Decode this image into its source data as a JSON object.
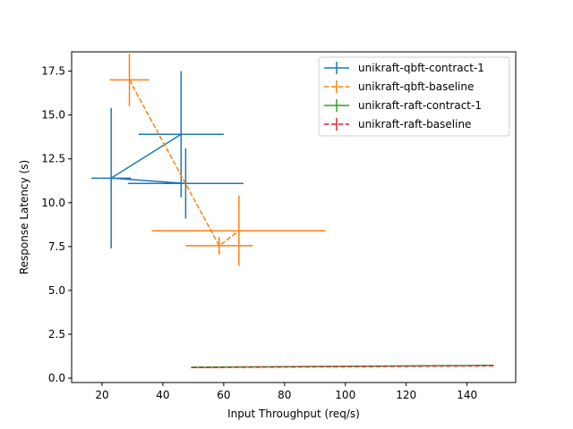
{
  "chart_data": {
    "type": "line",
    "title": "",
    "xlabel": "Input Throughput (req/s)",
    "ylabel": "Response Latency (s)",
    "xlim": [
      10,
      156
    ],
    "ylim": [
      -0.25,
      18.6
    ],
    "xticks": [
      20,
      40,
      60,
      80,
      100,
      120,
      140
    ],
    "xtick_labels": [
      "20",
      "40",
      "60",
      "80",
      "100",
      "120",
      "140"
    ],
    "yticks": [
      0.0,
      2.5,
      5.0,
      7.5,
      10.0,
      12.5,
      15.0,
      17.5
    ],
    "ytick_labels": [
      "0.0",
      "2.5",
      "5.0",
      "7.5",
      "10.0",
      "12.5",
      "15.0",
      "17.5"
    ],
    "grid": false,
    "legend_position": "top-right",
    "chart_type_detail": "line plot with x and y error bars",
    "series": [
      {
        "name": "unikraft-qbft-contract-1",
        "color": "#1f77b4",
        "dashed": false,
        "points": [
          {
            "x": 46.0,
            "y": 13.9,
            "xerr": 14.0,
            "yerr": 3.6
          },
          {
            "x": 23.0,
            "y": 11.4,
            "xerr": 6.5,
            "yerr": 4.0
          },
          {
            "x": 47.5,
            "y": 11.1,
            "xerr": 19.0,
            "yerr": 2.0
          }
        ]
      },
      {
        "name": "unikraft-qbft-baseline",
        "color": "#ff7f0e",
        "dashed": true,
        "points": [
          {
            "x": 29.0,
            "y": 17.0,
            "xerr": 6.5,
            "yerr": 1.5
          },
          {
            "x": 58.5,
            "y": 7.55,
            "xerr": 11.0,
            "yerr": 0.5
          },
          {
            "x": 65.0,
            "y": 8.4,
            "xerr": 28.5,
            "yerr": 2.0
          }
        ]
      },
      {
        "name": "unikraft-raft-contract-1",
        "color": "#2ca02c",
        "dashed": false,
        "points": [
          {
            "x": 49.5,
            "y": 0.62,
            "xerr": 0,
            "yerr": 0
          },
          {
            "x": 148.5,
            "y": 0.73,
            "xerr": 0,
            "yerr": 0
          }
        ]
      },
      {
        "name": "unikraft-raft-baseline",
        "color": "#d62728",
        "dashed": true,
        "points": [
          {
            "x": 49.5,
            "y": 0.6,
            "xerr": 0,
            "yerr": 0
          },
          {
            "x": 148.5,
            "y": 0.71,
            "xerr": 0,
            "yerr": 0
          }
        ]
      }
    ]
  }
}
